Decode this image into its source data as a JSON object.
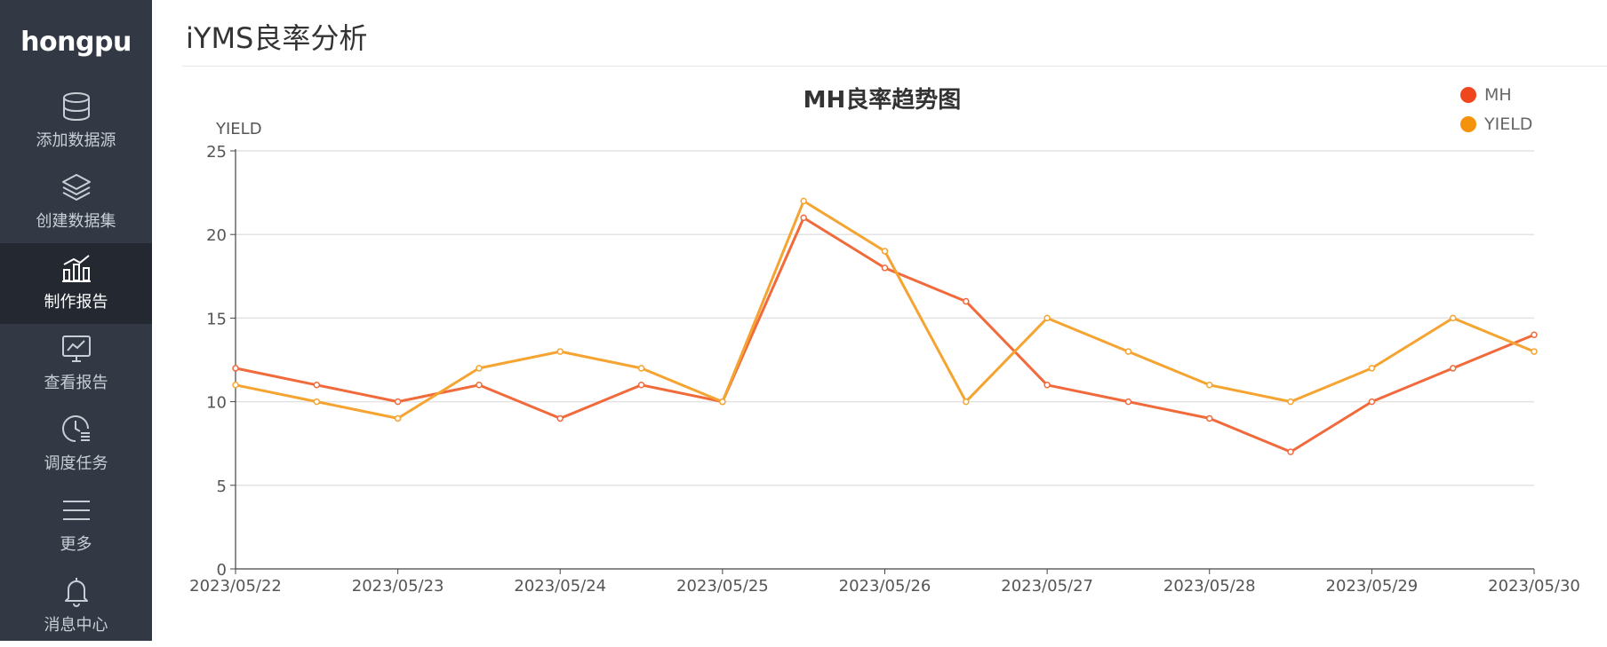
{
  "sidebar": {
    "logo": "hongpu",
    "items": [
      {
        "label": "添加数据源",
        "icon": "database-icon",
        "active": false
      },
      {
        "label": "创建数据集",
        "icon": "layers-icon",
        "active": false
      },
      {
        "label": "制作报告",
        "icon": "bar-chart-icon",
        "active": true
      },
      {
        "label": "查看报告",
        "icon": "monitor-chart-icon",
        "active": false
      },
      {
        "label": "调度任务",
        "icon": "clock-schedule-icon",
        "active": false
      },
      {
        "label": "更多",
        "icon": "menu-icon",
        "active": false
      },
      {
        "label": "消息中心",
        "icon": "bell-icon",
        "active": false
      }
    ]
  },
  "page": {
    "title": "iYMS良率分析"
  },
  "colors": {
    "sidebar_bg": "#333944",
    "sidebar_active": "#232831",
    "mh_series": "#f16a3b",
    "yield_series": "#f5a431",
    "mh_legend": "#f0461d",
    "yield_legend": "#f5920c"
  },
  "chart_data": {
    "type": "line",
    "title": "MH良率趋势图",
    "ylabel": "YIELD",
    "xlabel": "",
    "ylim": [
      0,
      25
    ],
    "yticks": [
      0,
      5,
      10,
      15,
      20,
      25
    ],
    "x_tick_labels": [
      "2023/05/22",
      "2023/05/23",
      "2023/05/24",
      "2023/05/25",
      "2023/05/26",
      "2023/05/27",
      "2023/05/28",
      "2023/05/29",
      "2023/05/30"
    ],
    "legend_position": "top-right",
    "grid": true,
    "series": [
      {
        "name": "MH",
        "values": [
          12,
          11,
          10,
          11,
          9,
          11,
          10,
          21,
          18,
          16,
          11,
          10,
          9,
          7,
          10,
          12,
          14
        ]
      },
      {
        "name": "YIELD",
        "values": [
          11,
          10,
          9,
          12,
          13,
          12,
          10,
          22,
          19,
          10,
          15,
          13,
          11,
          10,
          12,
          15,
          13
        ]
      }
    ]
  }
}
